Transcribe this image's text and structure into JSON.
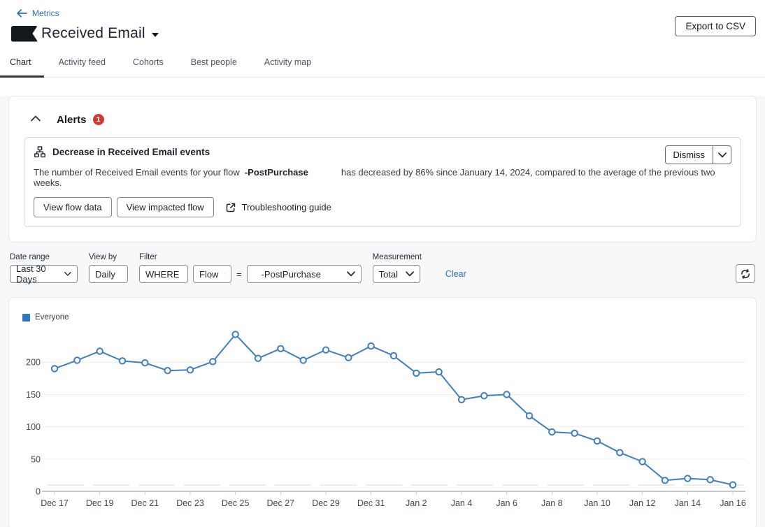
{
  "header": {
    "back_link": "Metrics",
    "title": "Received Email",
    "export_button": "Export to CSV",
    "tabs": [
      {
        "label": "Chart",
        "active": true
      },
      {
        "label": "Activity feed",
        "active": false
      },
      {
        "label": "Cohorts",
        "active": false
      },
      {
        "label": "Best people",
        "active": false
      },
      {
        "label": "Activity map",
        "active": false
      }
    ]
  },
  "alerts": {
    "section_title": "Alerts",
    "badge_count": "1",
    "alert": {
      "title": "Decrease in Received Email events",
      "message_prefix": "The number of Received Email events for your flow",
      "flow_name": "-PostPurchase",
      "message_suffix": "has decreased by 86% since January 14, 2024, compared to the average of the previous two weeks.",
      "dismiss_label": "Dismiss",
      "view_flow_data_button": "View flow data",
      "view_impacted_flow_button": "View impacted flow",
      "guide_link": "Troubleshooting guide"
    }
  },
  "filters": {
    "date_range": {
      "label": "Date range",
      "value": "Last 30 Days"
    },
    "view_by": {
      "label": "View by",
      "value": "Daily"
    },
    "filter": {
      "label": "Filter",
      "where": "WHERE",
      "field": "Flow",
      "operator": "=",
      "value": "-PostPurchase"
    },
    "measurement": {
      "label": "Measurement",
      "value": "Total"
    },
    "clear_label": "Clear"
  },
  "icons": {
    "back": "arrow-left",
    "title_caret": "caret-down",
    "alerts_collapse": "chevron-up",
    "alert_type": "flow-sitemap",
    "external_link": "external-link",
    "dropdown_caret": "chevron-down",
    "refresh": "refresh-cycle"
  },
  "colors": {
    "accent_blue": "#2570bf",
    "series_blue": "#3f7dc4",
    "legend_blue": "#2e76bf",
    "alert_red": "#cf3a33",
    "page_bg": "#f7f8f9"
  },
  "chart_data": {
    "type": "line",
    "title": "Received Email events over time",
    "legend": [
      "Everyone"
    ],
    "legend_position": "top-left",
    "grid": true,
    "series_color": "#3f7dc4",
    "categories": [
      "Dec 17",
      "Dec 18",
      "Dec 19",
      "Dec 20",
      "Dec 21",
      "Dec 22",
      "Dec 23",
      "Dec 24",
      "Dec 25",
      "Dec 26",
      "Dec 27",
      "Dec 28",
      "Dec 29",
      "Dec 30",
      "Dec 31",
      "Jan 1",
      "Jan 2",
      "Jan 3",
      "Jan 4",
      "Jan 5",
      "Jan 6",
      "Jan 7",
      "Jan 8",
      "Jan 9",
      "Jan 10",
      "Jan 11",
      "Jan 12",
      "Jan 13",
      "Jan 14",
      "Jan 15",
      "Jan 16"
    ],
    "values": [
      190,
      203,
      217,
      202,
      199,
      187,
      188,
      201,
      243,
      206,
      221,
      203,
      219,
      207,
      225,
      210,
      183,
      185,
      142,
      148,
      150,
      117,
      92,
      90,
      78,
      60,
      46,
      17,
      20,
      18,
      10
    ],
    "x_tick_labels": [
      "Dec 17",
      "Dec 19",
      "Dec 21",
      "Dec 23",
      "Dec 25",
      "Dec 27",
      "Dec 29",
      "Dec 31",
      "Jan 2",
      "Jan 4",
      "Jan 6",
      "Jan 8",
      "Jan 10",
      "Jan 12",
      "Jan 14",
      "Jan 16"
    ],
    "y_ticks": [
      0,
      50,
      100,
      150,
      200
    ],
    "ylim": [
      0,
      250
    ],
    "xlabel": "",
    "ylabel": ""
  }
}
